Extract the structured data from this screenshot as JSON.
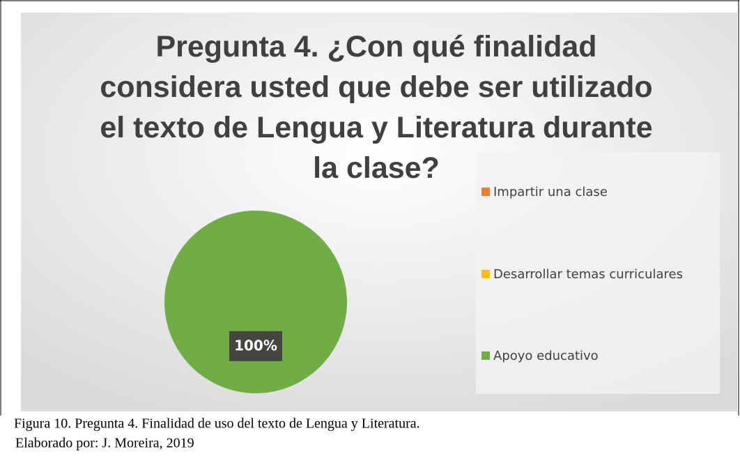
{
  "chart_data": {
    "type": "pie",
    "title": "Pregunta 4. ¿Con qué finalidad considera usted que debe ser utilizado el texto de Lengua y Literatura durante la clase?",
    "categories": [
      "Impartir una clase",
      "Desarrollar temas curriculares",
      "Apoyo educativo"
    ],
    "values": [
      0,
      0,
      100
    ],
    "value_labels": [
      null,
      null,
      "100%"
    ],
    "colors": [
      "#ed7d31",
      "#ffc000",
      "#70ad47"
    ],
    "legend": "right"
  },
  "caption": {
    "figure": "Figura 10. Pregunta 4. Finalidad de uso del texto de Lengua y Literatura.",
    "author": "Elaborado por: J. Moreira, 2019"
  }
}
